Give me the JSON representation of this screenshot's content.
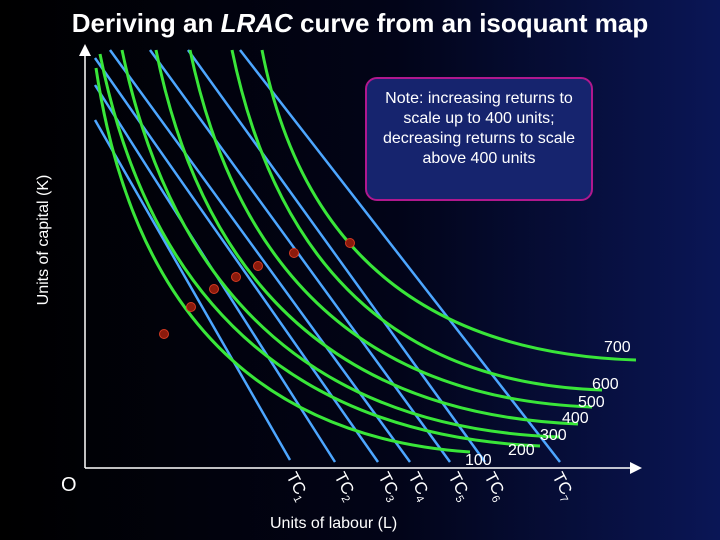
{
  "title": {
    "prefix": "Deriving an ",
    "emphasis": "LRAC",
    "suffix": " curve from an isoquant map"
  },
  "axes": {
    "ylabel": "Units of capital (K)",
    "xlabel": "Units of labour (L)",
    "origin": "O"
  },
  "note": "Note: increasing returns to scale up to 400 units; decreasing returns to scale above 400 units",
  "colors": {
    "background": "#000000",
    "isoquant": "#39e639",
    "isocost": "#4da6ff",
    "point": "#8b1a0c",
    "note_border": "#b0188e",
    "note_fill": "#16246e"
  },
  "chart_data": {
    "type": "isoquant-map",
    "isoquants": [
      {
        "label": "100"
      },
      {
        "label": "200"
      },
      {
        "label": "300"
      },
      {
        "label": "400"
      },
      {
        "label": "500"
      },
      {
        "label": "600"
      },
      {
        "label": "700"
      }
    ],
    "isocosts": [
      {
        "label": "TC",
        "sub": "1"
      },
      {
        "label": "TC",
        "sub": "2"
      },
      {
        "label": "TC",
        "sub": "3"
      },
      {
        "label": "TC",
        "sub": "4"
      },
      {
        "label": "TC",
        "sub": "5"
      },
      {
        "label": "TC",
        "sub": "6"
      },
      {
        "label": "TC",
        "sub": "7"
      }
    ],
    "tangency_points": 7
  }
}
